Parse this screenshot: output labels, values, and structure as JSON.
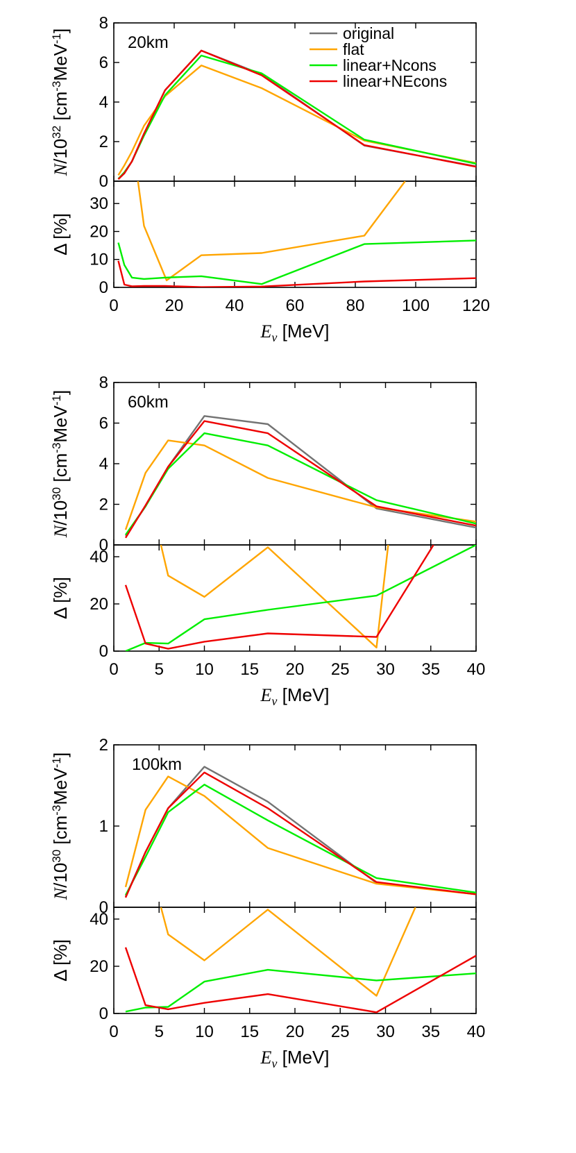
{
  "colors": {
    "original": "#737373",
    "flat": "#ffa500",
    "linear_ncons": "#00ee00",
    "linear_necons": "#ee0000"
  },
  "legend": [
    "original",
    "flat",
    "linear+Ncons",
    "linear+NEcons"
  ],
  "chart_data": [
    {
      "type": "line",
      "distance_label": "20km",
      "xlabel": "[MeV]",
      "ylabel_top": "[cm-3MeV-1]",
      "ylabel_bottom": "[%]",
      "top_exponent": "32",
      "xlim": [
        0,
        120
      ],
      "xticks": [
        0,
        20,
        40,
        60,
        80,
        100,
        120
      ],
      "top": {
        "ylim": [
          0,
          8
        ],
        "yticks": [
          0,
          2,
          4,
          6,
          8
        ],
        "series": [
          {
            "name": "original",
            "x": [
              1.5,
              3.5,
              6,
              10,
              17,
              29,
              49,
              83,
              120
            ],
            "y": [
              0.1,
              0.4,
              1.0,
              2.4,
              4.6,
              6.6,
              5.4,
              1.8,
              0.75
            ]
          },
          {
            "name": "flat",
            "x": [
              1.5,
              3.5,
              6,
              10,
              17,
              29,
              49,
              83,
              120
            ],
            "y": [
              0.3,
              0.8,
              1.5,
              2.8,
              4.3,
              5.85,
              4.7,
              2.05,
              0.92
            ]
          },
          {
            "name": "linear+Ncons",
            "x": [
              1.5,
              3.5,
              6,
              10,
              17,
              29,
              49,
              83,
              120
            ],
            "y": [
              0.12,
              0.45,
              1.0,
              2.3,
              4.35,
              6.35,
              5.45,
              2.1,
              0.88
            ]
          },
          {
            "name": "linear+NEcons",
            "x": [
              1.5,
              3.5,
              6,
              10,
              17,
              29,
              49,
              83,
              120
            ],
            "y": [
              0.1,
              0.4,
              1.0,
              2.4,
              4.6,
              6.6,
              5.35,
              1.82,
              0.73
            ]
          }
        ]
      },
      "bottom": {
        "ylim": [
          0,
          38
        ],
        "yticks": [
          0,
          10,
          20,
          30
        ],
        "series": [
          {
            "name": "flat",
            "x": [
              8,
              10,
              17.5,
              29,
              49,
              83,
              96.5
            ],
            "y": [
              38,
              22,
              2.5,
              11.5,
              12.3,
              18.5,
              38
            ]
          },
          {
            "name": "linear+Ncons",
            "x": [
              1.5,
              3.5,
              6,
              10,
              17,
              29,
              49,
              83,
              120
            ],
            "y": [
              16,
              8,
              3.5,
              3,
              3.5,
              4,
              1.2,
              15.5,
              16.8
            ]
          },
          {
            "name": "linear+NEcons",
            "x": [
              1.5,
              3.5,
              6,
              10,
              17,
              29,
              49,
              83,
              120
            ],
            "y": [
              9.5,
              1,
              0.4,
              0.5,
              0.5,
              0.1,
              0.3,
              2.1,
              3.3
            ]
          }
        ]
      }
    },
    {
      "type": "line",
      "distance_label": "60km",
      "xlabel": "[MeV]",
      "ylabel_top": "[cm-3MeV-1]",
      "ylabel_bottom": "[%]",
      "top_exponent": "30",
      "xlim": [
        0,
        40
      ],
      "xticks": [
        0,
        5,
        10,
        15,
        20,
        25,
        30,
        35,
        40
      ],
      "top": {
        "ylim": [
          0,
          8
        ],
        "yticks": [
          0,
          2,
          4,
          6,
          8
        ],
        "series": [
          {
            "name": "original",
            "x": [
              1.3,
              3.5,
              6,
              10,
              17,
              29,
              40
            ],
            "y": [
              0.45,
              1.9,
              3.85,
              6.35,
              5.95,
              1.8,
              0.85
            ]
          },
          {
            "name": "flat",
            "x": [
              1.3,
              3.5,
              6,
              10,
              17,
              29,
              40
            ],
            "y": [
              0.75,
              3.55,
              5.15,
              4.9,
              3.3,
              1.85,
              1.15
            ]
          },
          {
            "name": "linear+Ncons",
            "x": [
              1.3,
              3.5,
              6,
              10,
              17,
              29,
              40
            ],
            "y": [
              0.5,
              1.9,
              3.75,
              5.5,
              4.9,
              2.2,
              1.05
            ]
          },
          {
            "name": "linear+NEcons",
            "x": [
              1.3,
              3.5,
              6,
              10,
              17,
              29,
              40
            ],
            "y": [
              0.35,
              1.95,
              3.85,
              6.1,
              5.5,
              1.9,
              0.95
            ]
          }
        ]
      },
      "bottom": {
        "ylim": [
          0,
          45
        ],
        "yticks": [
          0,
          20,
          40
        ],
        "series": [
          {
            "name": "flat",
            "x": [
              5.2,
              6,
              10,
              17,
              29,
              30.3
            ],
            "y": [
              45,
              32,
              23,
              44,
              1.5,
              45
            ]
          },
          {
            "name": "linear+Ncons",
            "x": [
              1.3,
              3.5,
              6,
              10,
              17,
              29,
              40
            ],
            "y": [
              0,
              3.5,
              3.2,
              13.5,
              17.5,
              23.5,
              45
            ]
          },
          {
            "name": "linear+NEcons",
            "x": [
              1.3,
              3.5,
              6,
              10,
              17,
              29,
              35.3
            ],
            "y": [
              28,
              3.2,
              1,
              4,
              7.5,
              6,
              45
            ]
          }
        ]
      }
    },
    {
      "type": "line",
      "distance_label": "100km",
      "xlabel": "[MeV]",
      "ylabel_top": "[cm-3MeV-1]",
      "ylabel_bottom": "[%]",
      "top_exponent": "30",
      "xlim": [
        0,
        40
      ],
      "xticks": [
        0,
        5,
        10,
        15,
        20,
        25,
        30,
        35,
        40
      ],
      "top": {
        "ylim": [
          0,
          2
        ],
        "yticks": [
          0,
          1,
          2
        ],
        "series": [
          {
            "name": "original",
            "x": [
              1.3,
              3.5,
              6,
              10,
              17,
              29,
              40
            ],
            "y": [
              0.13,
              0.68,
              1.22,
              1.73,
              1.3,
              0.3,
              0.16
            ]
          },
          {
            "name": "flat",
            "x": [
              1.3,
              3.5,
              6,
              10,
              17,
              29,
              40
            ],
            "y": [
              0.25,
              1.2,
              1.61,
              1.37,
              0.73,
              0.29,
              0.16
            ]
          },
          {
            "name": "linear+Ncons",
            "x": [
              1.3,
              3.5,
              6,
              10,
              17,
              29,
              40
            ],
            "y": [
              0.15,
              0.62,
              1.17,
              1.51,
              1.07,
              0.36,
              0.18
            ]
          },
          {
            "name": "linear+NEcons",
            "x": [
              1.3,
              3.5,
              6,
              10,
              17,
              29,
              40
            ],
            "y": [
              0.12,
              0.68,
              1.22,
              1.66,
              1.22,
              0.31,
              0.16
            ]
          }
        ]
      },
      "bottom": {
        "ylim": [
          0,
          45
        ],
        "yticks": [
          0,
          20,
          40
        ],
        "series": [
          {
            "name": "flat",
            "x": [
              5.2,
              6,
              10,
              17,
              29,
              33.3
            ],
            "y": [
              45,
              33.5,
              22.5,
              44,
              7.5,
              45
            ]
          },
          {
            "name": "linear+Ncons",
            "x": [
              1.3,
              3.5,
              6,
              10,
              17,
              29,
              40
            ],
            "y": [
              0.8,
              2.5,
              2.8,
              13.5,
              18.5,
              14,
              17
            ]
          },
          {
            "name": "linear+NEcons",
            "x": [
              1.3,
              3.5,
              6,
              10,
              17,
              29,
              40
            ],
            "y": [
              28,
              3.5,
              1.8,
              4.5,
              8.2,
              0.5,
              24.5
            ]
          }
        ]
      }
    }
  ]
}
